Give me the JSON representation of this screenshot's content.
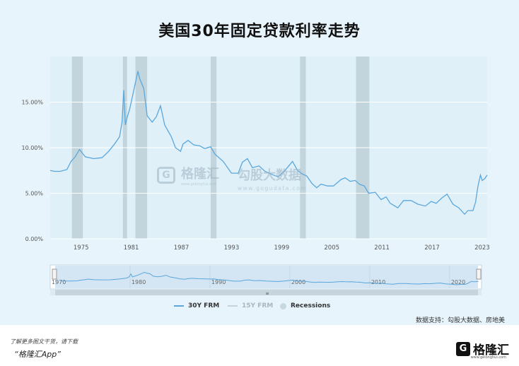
{
  "title": "美国30年固定贷款利率走势",
  "watermark": {
    "brand": "格隆汇",
    "brand_mark": "G",
    "brand_url": "www.gelonghui.com",
    "data_brand": "勾股大数据",
    "data_url": "www.gogudata.com"
  },
  "legend": {
    "items": [
      "30Y FRM",
      "15Y FRM",
      "Recessions"
    ]
  },
  "source": "数据支持：勾股大数据、房地美",
  "footer": {
    "note": "了解更多图文干货，请下载",
    "app": "“格隆汇App”",
    "brand": "格隆汇",
    "brand_mark": "G",
    "brand_url": "www.gelonghui.com"
  },
  "colors": {
    "line": "#5aa7dc",
    "recession": "#c2d5dc",
    "background": "#e7f4fb",
    "grid": "#ffffff"
  },
  "chart_data": {
    "type": "line",
    "title": "美国30年固定贷款利率走势",
    "xlabel": "",
    "ylabel": "",
    "xlim": [
      1971.3,
      2023.6
    ],
    "ylim": [
      0,
      20
    ],
    "y_ticks": [
      0,
      5,
      10,
      15
    ],
    "y_tick_labels": [
      "0.00%",
      "5.00%",
      "10.00%",
      "15.00%"
    ],
    "x_ticks": [
      1975,
      1981,
      1987,
      1993,
      1999,
      2005,
      2011,
      2017,
      2023
    ],
    "grid": true,
    "legend_position": "bottom",
    "recessions": [
      [
        1973.9,
        1975.2
      ],
      [
        1980.0,
        1980.5
      ],
      [
        1981.5,
        1982.9
      ],
      [
        1990.5,
        1991.2
      ],
      [
        2001.2,
        2001.9
      ],
      [
        2007.9,
        2009.5
      ]
    ],
    "series": [
      {
        "name": "30Y FRM",
        "x": [
          1971.3,
          1971.8,
          1972.5,
          1973.3,
          1973.8,
          1974.3,
          1974.8,
          1975.5,
          1976.5,
          1977.5,
          1978.3,
          1979.0,
          1979.6,
          1979.9,
          1980.1,
          1980.3,
          1980.5,
          1980.8,
          1981.0,
          1981.4,
          1981.8,
          1982.0,
          1982.5,
          1982.9,
          1983.5,
          1984.0,
          1984.5,
          1985.0,
          1985.8,
          1986.3,
          1986.9,
          1987.2,
          1987.8,
          1988.5,
          1989.2,
          1989.8,
          1990.5,
          1991.0,
          1992.0,
          1993.0,
          1993.8,
          1994.3,
          1994.9,
          1995.5,
          1996.3,
          1997.0,
          1998.0,
          1998.6,
          1999.3,
          2000.3,
          2000.9,
          2001.5,
          2002.0,
          2002.6,
          2003.2,
          2003.7,
          2004.5,
          2005.2,
          2006.1,
          2006.6,
          2007.2,
          2007.8,
          2008.3,
          2008.9,
          2009.4,
          2010.2,
          2010.9,
          2011.5,
          2012.0,
          2012.9,
          2013.6,
          2014.5,
          2015.3,
          2016.2,
          2016.9,
          2017.5,
          2018.2,
          2018.8,
          2019.5,
          2020.2,
          2020.9,
          2021.3,
          2021.9,
          2022.2,
          2022.5,
          2022.8,
          2023.0,
          2023.3,
          2023.6
        ],
        "values": [
          7.5,
          7.4,
          7.4,
          7.6,
          8.5,
          9.0,
          9.8,
          9.0,
          8.8,
          8.9,
          9.6,
          10.4,
          11.2,
          12.8,
          16.3,
          12.5,
          13.3,
          14.2,
          15.0,
          16.7,
          18.4,
          17.6,
          16.5,
          13.5,
          12.8,
          13.4,
          14.6,
          12.5,
          11.2,
          10.0,
          9.6,
          10.4,
          10.8,
          10.3,
          10.2,
          9.9,
          10.1,
          9.3,
          8.5,
          7.2,
          7.2,
          8.4,
          8.8,
          7.8,
          8.0,
          7.4,
          7.0,
          6.8,
          7.4,
          8.5,
          7.5,
          7.1,
          6.9,
          6.1,
          5.6,
          6.0,
          5.8,
          5.8,
          6.5,
          6.7,
          6.3,
          6.4,
          6.0,
          5.8,
          5.0,
          5.1,
          4.3,
          4.6,
          3.9,
          3.4,
          4.2,
          4.2,
          3.8,
          3.6,
          4.1,
          3.9,
          4.5,
          4.9,
          3.8,
          3.4,
          2.7,
          3.1,
          3.1,
          4.0,
          5.8,
          7.0,
          6.4,
          6.6,
          7.0
        ]
      }
    ]
  }
}
